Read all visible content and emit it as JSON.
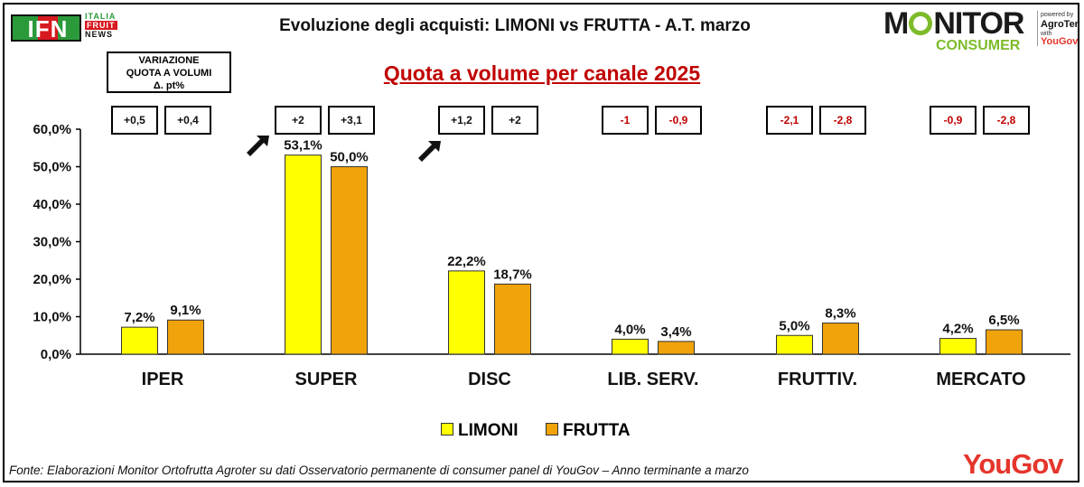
{
  "header": {
    "ifn_logo": "IFN",
    "ifn_lines": [
      "ITALIA",
      "FRUIT",
      "NEWS"
    ],
    "title": "Evoluzione degli acquisti: LIMONI vs FRUTTA  - A.T. marzo",
    "subtitle": "Quota a volume per canale 2025",
    "monitor_logo": {
      "main": "MONITOR",
      "sub": "CONSUMER",
      "powered": "powered by",
      "brand": "AgroTer",
      "with": "with",
      "partner": "YouGov"
    }
  },
  "variation_box": {
    "lines": [
      "VARIAZIONE",
      "QUOTA A VOLUMI",
      "Δ. pt%"
    ]
  },
  "variation_deltas": [
    {
      "limoni": "+0,5",
      "frutta": "+0,4"
    },
    {
      "limoni": "+2",
      "frutta": "+3,1"
    },
    {
      "limoni": "+1,2",
      "frutta": "+2"
    },
    {
      "limoni": "-1",
      "frutta": "-0,9"
    },
    {
      "limoni": "-2,1",
      "frutta": "-2,8"
    },
    {
      "limoni": "-0,9",
      "frutta": "-2,8"
    }
  ],
  "chart_data": {
    "type": "bar",
    "title": "Quota a volume per canale 2025",
    "categories": [
      "IPER",
      "SUPER",
      "DISC",
      "LIB. SERV.",
      "FRUTTIV.",
      "MERCATO"
    ],
    "series": [
      {
        "name": "LIMONI",
        "values": [
          7.2,
          53.1,
          22.2,
          4.0,
          5.0,
          4.2
        ],
        "labels": [
          "7,2%",
          "53,1%",
          "22,2%",
          "4,0%",
          "5,0%",
          "4,2%"
        ]
      },
      {
        "name": "FRUTTA",
        "values": [
          9.1,
          50.0,
          18.7,
          3.4,
          8.3,
          6.5
        ],
        "labels": [
          "9,1%",
          "50,0%",
          "18,7%",
          "3,4%",
          "8,3%",
          "6,5%"
        ]
      }
    ],
    "ylim": [
      0,
      60
    ],
    "yticks": [
      0,
      10,
      20,
      30,
      40,
      50,
      60
    ],
    "ytick_labels": [
      "0,0%",
      "10,0%",
      "20,0%",
      "30,0%",
      "40,0%",
      "50,0%",
      "60,0%"
    ],
    "grid": false,
    "legend": "bottom-center",
    "colors": {
      "LIMONI": "#ffff00",
      "FRUTTA": "#f0a30a"
    }
  },
  "highlight_arrows": [
    "arrow-icon",
    "arrow-icon"
  ],
  "footer": {
    "source": "Fonte: Elaborazioni Monitor Ortofrutta Agroter su dati Osservatorio permanente di consumer panel di YouGov  – Anno terminante a marzo",
    "yougov_logo": "YouGov"
  }
}
